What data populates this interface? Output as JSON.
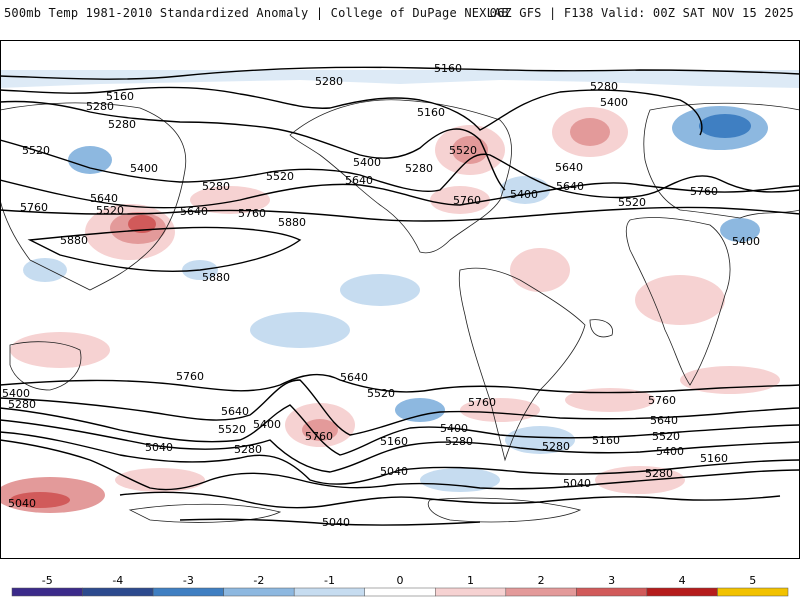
{
  "header": {
    "left": "500mb Temp 1981-2010 Standardized Anomaly | College of DuPage NEXLAB",
    "right": "06Z GFS | F138 Valid: 00Z SAT NOV 15 2025"
  },
  "contour_labels": {
    "l5160_a": "5160",
    "l5160_b": "5160",
    "l5160_c": "5160",
    "l5160_d": "5160",
    "l5160_e": "5160",
    "l5160_f": "5160",
    "l5280_a": "5280",
    "l5280_b": "5280",
    "l5280_c": "5280",
    "l5280_d": "5280",
    "l5280_e": "5280",
    "l5280_f": "5280",
    "l5280_g": "5280",
    "l5280_h": "5280",
    "l5280_i": "5280",
    "l5280_j": "5280",
    "l5280_k": "5280",
    "l5400_a": "5400",
    "l5400_b": "5400",
    "l5400_c": "5400",
    "l5400_d": "5400",
    "l5400_e": "5400",
    "l5400_f": "5400",
    "l5400_g": "5400",
    "l5400_h": "5400",
    "l5400_i": "5400",
    "l5520_a": "5520",
    "l5520_b": "5520",
    "l5520_c": "5520",
    "l5520_d": "5520",
    "l5520_e": "5520",
    "l5520_f": "5520",
    "l5520_g": "5520",
    "l5520_h": "5520",
    "l5640_a": "5640",
    "l5640_b": "5640",
    "l5640_c": "5640",
    "l5640_d": "5640",
    "l5640_e": "5640",
    "l5640_f": "5640",
    "l5640_g": "5640",
    "l5640_h": "5640",
    "l5760_a": "5760",
    "l5760_b": "5760",
    "l5760_c": "5760",
    "l5760_d": "5760",
    "l5760_e": "5760",
    "l5760_f": "5760",
    "l5760_g": "5760",
    "l5760_h": "5760",
    "l5880_a": "5880",
    "l5880_b": "5880",
    "l5880_c": "5880",
    "l5040_a": "5040",
    "l5040_b": "5040",
    "l5040_c": "5040",
    "l5040_d": "5040",
    "l5040_e": "5040"
  },
  "colorbar": {
    "ticks": [
      "-5",
      "-4",
      "-3",
      "-2",
      "-1",
      "0",
      "1",
      "2",
      "3",
      "4",
      "5"
    ],
    "colors": [
      "#3b2a8a",
      "#2c4a8e",
      "#3f7fc2",
      "#8db8e0",
      "#c6dcf0",
      "#ffffff",
      "#f6d2d2",
      "#e39a9a",
      "#d15a5a",
      "#b51c1c",
      "#f2c200"
    ]
  }
}
